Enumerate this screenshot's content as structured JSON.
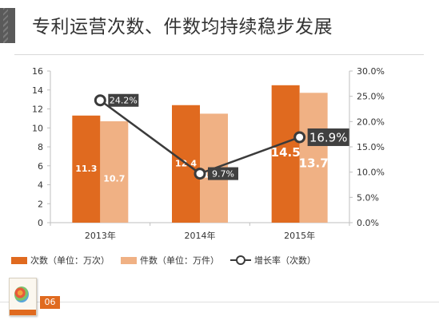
{
  "title": "专利运营次数、件数均持续稳步发展",
  "page_number": "06",
  "colors": {
    "times_bar": "#E06A1F",
    "pieces_bar": "#F0B184",
    "line": "#3B3B3B",
    "label_box": "#404040"
  },
  "legend": {
    "times": "次数（单位：万次）",
    "pieces": "件数（单位：万件）",
    "growth": "增长率（次数）"
  },
  "chart_data": {
    "type": "bar",
    "categories": [
      "2013年",
      "2014年",
      "2015年"
    ],
    "series": [
      {
        "name": "次数（单位：万次）",
        "type": "bar",
        "axis": "left",
        "values": [
          11.3,
          12.4,
          14.5
        ],
        "labels": [
          "11.3",
          "12.4",
          "14.5"
        ]
      },
      {
        "name": "件数（单位：万件）",
        "type": "bar",
        "axis": "left",
        "values": [
          10.7,
          11.5,
          13.7
        ],
        "labels": [
          "10.7",
          "11.5",
          "13.7"
        ]
      },
      {
        "name": "增长率（次数）",
        "type": "line",
        "axis": "right",
        "values": [
          24.2,
          9.7,
          16.9
        ],
        "labels": [
          "24.2%",
          "9.7%",
          "16.9%"
        ]
      }
    ],
    "y_left": {
      "ylim": [
        0,
        16
      ],
      "ticks": [
        "0",
        "2",
        "4",
        "6",
        "8",
        "10",
        "12",
        "14",
        "16"
      ]
    },
    "y_right": {
      "ylim": [
        0,
        30
      ],
      "ticks": [
        "0.0%",
        "5.0%",
        "10.0%",
        "15.0%",
        "20.0%",
        "25.0%",
        "30.0%"
      ]
    },
    "grid": false,
    "legend_position": "bottom-left"
  }
}
